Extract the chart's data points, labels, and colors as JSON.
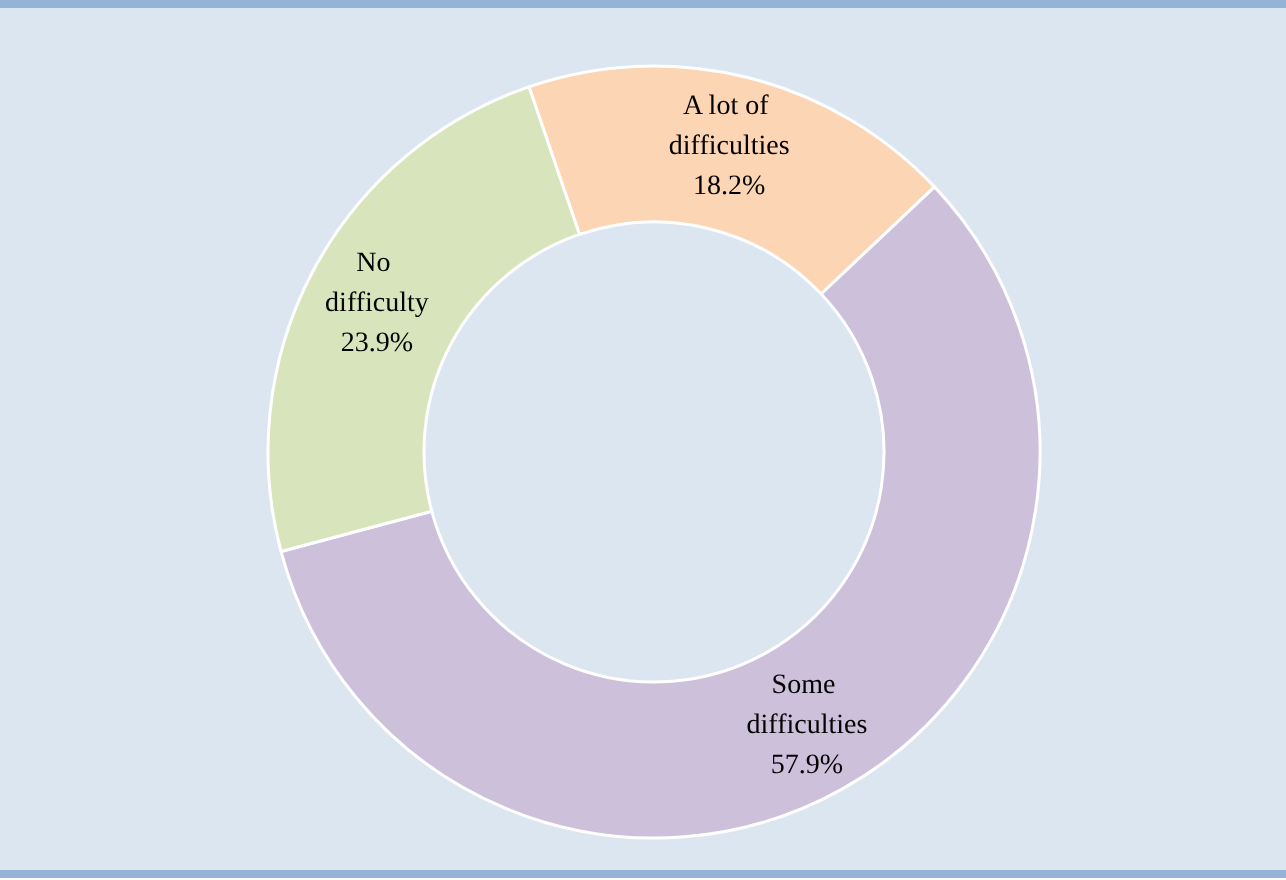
{
  "chart_data": {
    "type": "donut",
    "categories": [
      "A lot of difficulties",
      "Some difficulties",
      "No difficulty"
    ],
    "values": [
      18.2,
      57.9,
      23.9
    ],
    "value_labels": [
      "18.2%",
      "57.9%",
      "23.9%"
    ],
    "colors": [
      "#fcd5b4",
      "#ccc0da",
      "#d8e4bc"
    ],
    "legend": false
  }
}
